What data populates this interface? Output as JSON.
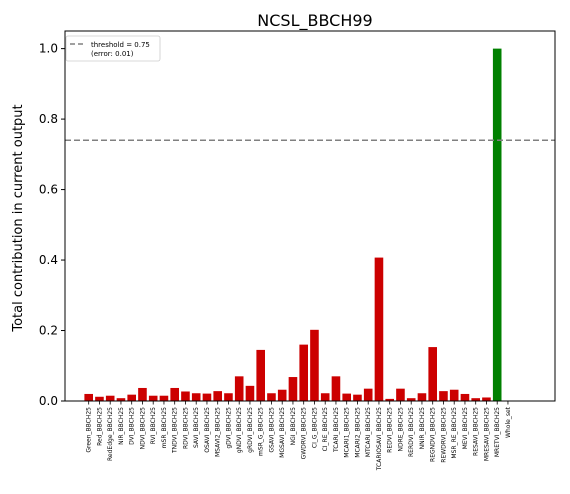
{
  "chart_data": {
    "type": "bar",
    "title": "NCSL_BBCH99",
    "xlabel": "",
    "ylabel": "Total contribution in current output",
    "ylim": [
      0,
      1.05
    ],
    "yticks": [
      "0.0",
      "0.2",
      "0.4",
      "0.6",
      "0.8",
      "1.0"
    ],
    "yticks_values": [
      0,
      0.2,
      0.4,
      0.6,
      0.8,
      1.0
    ],
    "grid": false,
    "legend": {
      "placement": "top-left",
      "entries": [
        "threshold = 0.75",
        "(error: 0.01)"
      ]
    },
    "threshold": 0.74,
    "colors": {
      "bar": "#cc0000",
      "highlight": "#008000",
      "threshold_line": "#808080"
    },
    "categories": [
      "Green_BBCH25",
      "Red_BBCH25",
      "RedEdge_BBCH25",
      "NIR_BBCH25",
      "DVI_BBCH25",
      "NDVI_BBCH25",
      "RVI_BBCH25",
      "mSR_BBCH25",
      "TNDVI_BBCH25",
      "RDVI_BBCH25",
      "SAVI_BBCH25",
      "OSAVI_BBCH25",
      "MSAVI2_BBCH25",
      "gDVI_BBCH25",
      "gNDVI_BBCH25",
      "gRDVI_BBCH25",
      "mSR_G_BBCH25",
      "GSAVI_BBCH25",
      "MGSAVI_BBCH25",
      "NGI_BBCH25",
      "GWDRVI_BBCH25",
      "CI_G_BBCH25",
      "CI_RE_BBCH25",
      "TCARI_BBCH25",
      "MCARI1_BBCH25",
      "MCARI2_BBCH25",
      "MTCARI_BBCH25",
      "TCARIOSAVI_BBCH25",
      "REDVI_BBCH25",
      "NDRE_BBCH25",
      "RERDVI_BBCH25",
      "NNIR_BBCH25",
      "REGNDVI_BBCH25",
      "REWDRVI_BBCH25",
      "MSR_RE_BBCH25",
      "MEVI_BBCH25",
      "RESAVI_BBCH25",
      "MRESAVI_BBCH25",
      "MRETVI_BBCH25",
      "Whole_set"
    ],
    "values": [
      0.02,
      0.012,
      0.015,
      0.008,
      0.018,
      0.037,
      0.015,
      0.015,
      0.037,
      0.027,
      0.022,
      0.021,
      0.028,
      0.022,
      0.07,
      0.043,
      0.145,
      0.022,
      0.032,
      0.068,
      0.16,
      0.202,
      0.022,
      0.07,
      0.021,
      0.018,
      0.035,
      0.407,
      0.006,
      0.035,
      0.008,
      0.022,
      0.153,
      0.028,
      0.032,
      0.02,
      0.008,
      0.01,
      1.0,
      0
    ],
    "highlight_index": 38
  }
}
